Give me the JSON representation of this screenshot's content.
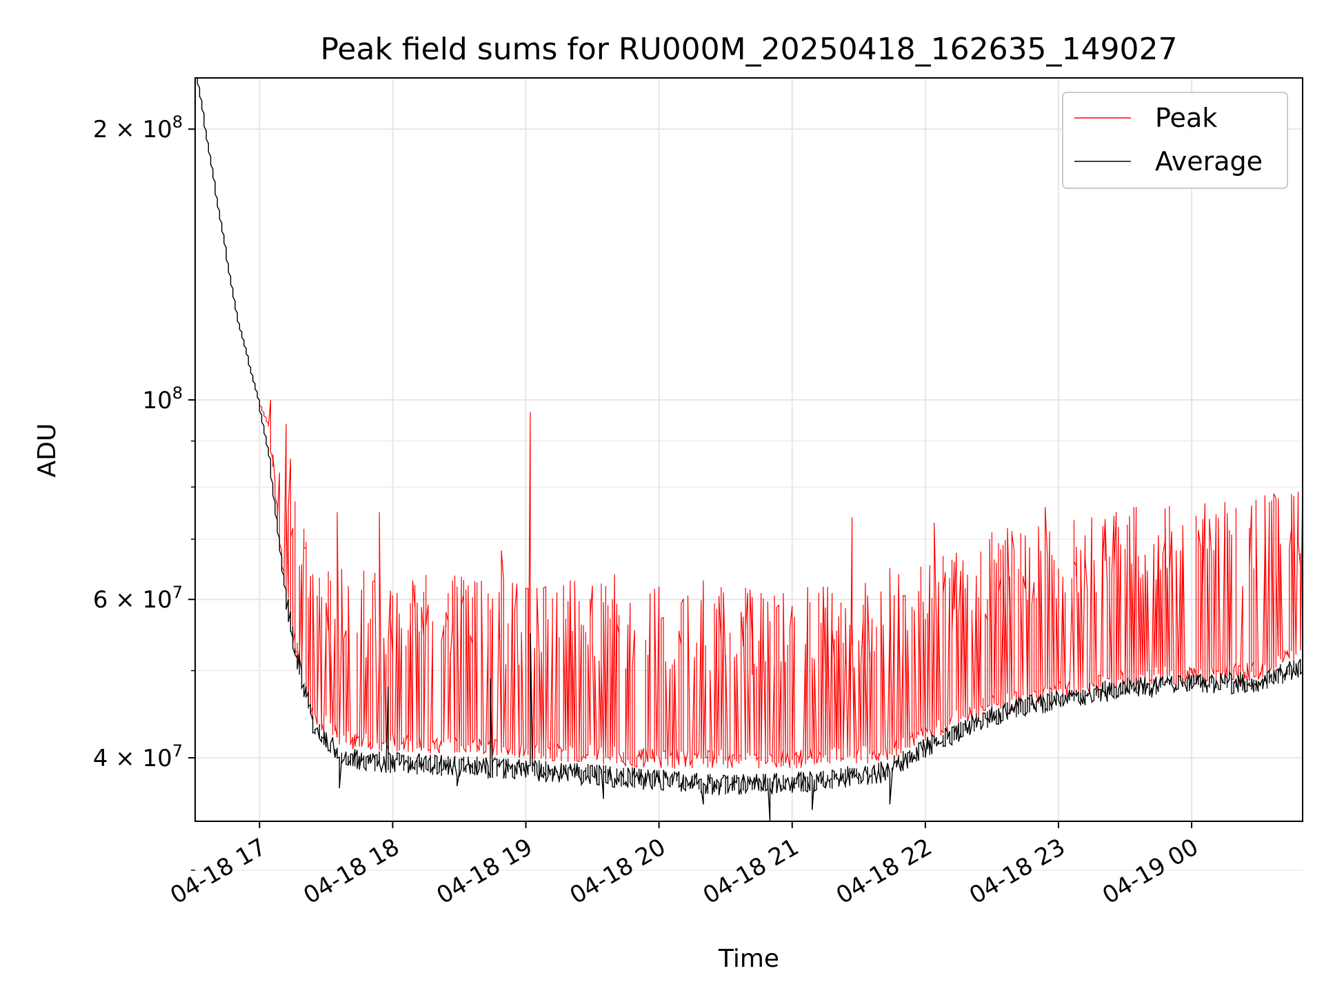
{
  "chart_data": {
    "type": "line",
    "title": "Peak field sums for RU000M_20250418_162635_149027",
    "xlabel": "Time",
    "ylabel": "ADU",
    "y_scale": "log",
    "grid": true,
    "legend_position": "top-right",
    "xlim": [
      "2025-04-18 16:31",
      "2025-04-19 00:50"
    ],
    "ylim": [
      34000000,
      228000000
    ],
    "x_ticks": [
      "04-18 17",
      "04-18 18",
      "04-18 19",
      "04-18 20",
      "04-18 21",
      "04-18 22",
      "04-18 23",
      "04-19 00"
    ],
    "y_ticks": [
      {
        "value": 200000000,
        "mant": "2",
        "exp": "8"
      },
      {
        "value": 100000000,
        "mant": "",
        "exp": "8"
      },
      {
        "value": 60000000,
        "mant": "6",
        "exp": "7"
      },
      {
        "value": 40000000,
        "mant": "4",
        "exp": "7"
      }
    ],
    "series": [
      {
        "name": "Peak",
        "color": "#ff0000",
        "baseline": [
          [
            "2025-04-18 16:31",
            240000000
          ],
          [
            "2025-04-18 16:40",
            175000000
          ],
          [
            "2025-04-18 16:50",
            125000000
          ],
          [
            "2025-04-18 17:00",
            100000000
          ],
          [
            "2025-04-18 17:05",
            93000000
          ],
          [
            "2025-04-18 17:10",
            68000000
          ],
          [
            "2025-04-18 17:15",
            55000000
          ],
          [
            "2025-04-18 17:25",
            44000000
          ],
          [
            "2025-04-18 17:40",
            41500000
          ],
          [
            "2025-04-18 18:00",
            41200000
          ],
          [
            "2025-04-18 19:00",
            40500000
          ],
          [
            "2025-04-18 20:00",
            39500000
          ],
          [
            "2025-04-18 21:00",
            39500000
          ],
          [
            "2025-04-18 21:40",
            40000000
          ],
          [
            "2025-04-18 22:00",
            42000000
          ],
          [
            "2025-04-18 22:30",
            45500000
          ],
          [
            "2025-04-18 23:00",
            47000000
          ],
          [
            "2025-04-18 23:30",
            48500000
          ],
          [
            "2025-04-19 00:00",
            49000000
          ],
          [
            "2025-04-19 00:30",
            49500000
          ],
          [
            "2025-04-19 00:50",
            52000000
          ]
        ],
        "spikes": [
          [
            "2025-04-18 17:05",
            100000000
          ],
          [
            "2025-04-18 17:07",
            87000000
          ],
          [
            "2025-04-18 17:09",
            83000000
          ],
          [
            "2025-04-18 17:15",
            72000000
          ],
          [
            "2025-04-18 17:25",
            64000000
          ],
          [
            "2025-04-18 17:36",
            75000000
          ],
          [
            "2025-04-18 17:55",
            75000000
          ],
          [
            "2025-04-18 18:10",
            63000000
          ],
          [
            "2025-04-18 18:30",
            62000000
          ],
          [
            "2025-04-18 18:50",
            68000000
          ],
          [
            "2025-04-18 19:02",
            97000000
          ],
          [
            "2025-04-18 19:20",
            63000000
          ],
          [
            "2025-04-18 19:40",
            64000000
          ],
          [
            "2025-04-18 20:00",
            62000000
          ],
          [
            "2025-04-18 20:20",
            63000000
          ],
          [
            "2025-04-18 20:40",
            61000000
          ],
          [
            "2025-04-18 21:00",
            59000000
          ],
          [
            "2025-04-18 21:15",
            62000000
          ],
          [
            "2025-04-18 21:27",
            74000000
          ],
          [
            "2025-04-18 21:45",
            65000000
          ],
          [
            "2025-04-18 22:05",
            73000000
          ],
          [
            "2025-04-18 22:30",
            70000000
          ],
          [
            "2025-04-18 22:55",
            76000000
          ],
          [
            "2025-04-18 23:15",
            74000000
          ],
          [
            "2025-04-18 23:35",
            76000000
          ],
          [
            "2025-04-18 23:55",
            68000000
          ],
          [
            "2025-04-19 00:15",
            77000000
          ],
          [
            "2025-04-19 00:35",
            75000000
          ],
          [
            "2025-04-19 00:45",
            72000000
          ]
        ]
      },
      {
        "name": "Average",
        "color": "#000000",
        "baseline": [
          [
            "2025-04-18 16:31",
            240000000
          ],
          [
            "2025-04-18 16:40",
            175000000
          ],
          [
            "2025-04-18 16:50",
            125000000
          ],
          [
            "2025-04-18 17:00",
            100000000
          ],
          [
            "2025-04-18 17:05",
            86000000
          ],
          [
            "2025-04-18 17:10",
            67000000
          ],
          [
            "2025-04-18 17:15",
            55000000
          ],
          [
            "2025-04-18 17:25",
            43000000
          ],
          [
            "2025-04-18 17:40",
            40000000
          ],
          [
            "2025-04-18 18:00",
            39500000
          ],
          [
            "2025-04-18 19:00",
            38800000
          ],
          [
            "2025-04-18 20:00",
            37800000
          ],
          [
            "2025-04-18 20:30",
            37300000
          ],
          [
            "2025-04-18 21:00",
            37500000
          ],
          [
            "2025-04-18 21:40",
            38500000
          ],
          [
            "2025-04-18 22:00",
            41000000
          ],
          [
            "2025-04-18 22:30",
            44500000
          ],
          [
            "2025-04-18 23:00",
            46500000
          ],
          [
            "2025-04-18 23:30",
            47800000
          ],
          [
            "2025-04-19 00:00",
            48200000
          ],
          [
            "2025-04-19 00:30",
            48600000
          ],
          [
            "2025-04-19 00:50",
            50500000
          ]
        ],
        "spikes": [
          [
            "2025-04-18 17:37",
            37000000
          ],
          [
            "2025-04-18 17:58",
            48000000
          ],
          [
            "2025-04-18 18:30",
            37200000
          ],
          [
            "2025-04-18 18:45",
            49000000
          ],
          [
            "2025-04-18 19:03",
            55000000
          ],
          [
            "2025-04-18 19:35",
            36000000
          ],
          [
            "2025-04-18 20:20",
            35500000
          ],
          [
            "2025-04-18 20:50",
            34000000
          ],
          [
            "2025-04-18 21:10",
            35000000
          ],
          [
            "2025-04-18 21:45",
            35500000
          ]
        ]
      }
    ]
  }
}
